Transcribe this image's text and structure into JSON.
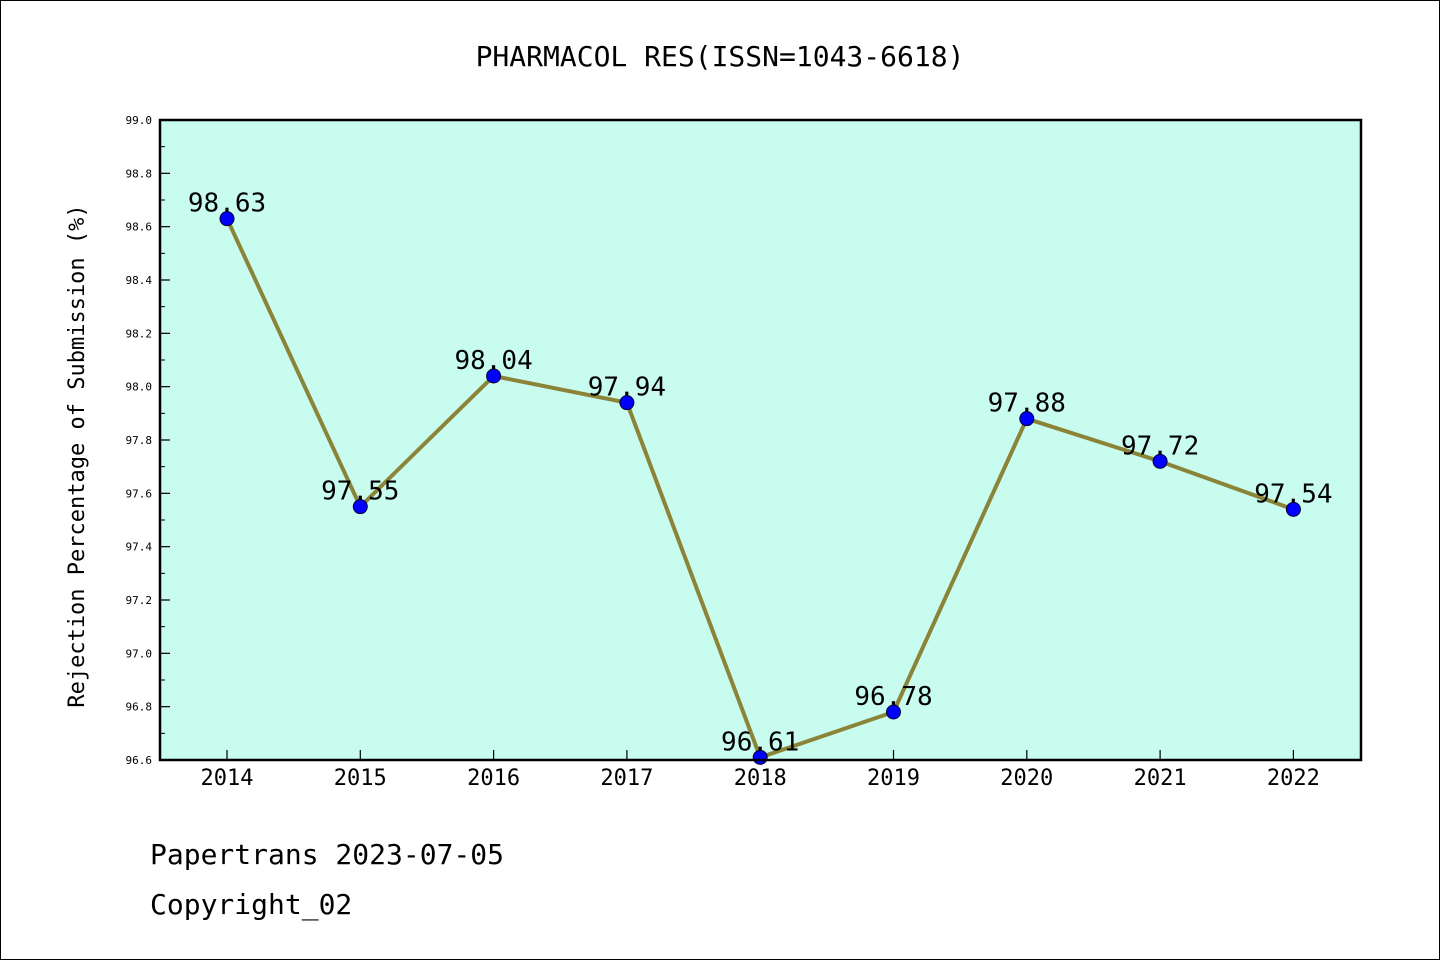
{
  "chart_data": {
    "type": "line",
    "title": "PHARMACOL RES(ISSN=1043-6618)",
    "xlabel": "",
    "ylabel": "Rejection Percentage of Submission (%)",
    "categories": [
      "2014",
      "2015",
      "2016",
      "2017",
      "2018",
      "2019",
      "2020",
      "2021",
      "2022"
    ],
    "series": [
      {
        "values": [
          98.63,
          97.55,
          98.04,
          97.94,
          96.61,
          96.78,
          97.88,
          97.72,
          97.54
        ],
        "data_labels": [
          "98.63",
          "97.55",
          "98.04",
          "97.94",
          "96.61",
          "96.78",
          "97.88",
          "97.72",
          "97.54"
        ]
      }
    ],
    "ylim": [
      96.6,
      99.0
    ],
    "yticks": [
      96.6,
      96.8,
      97.0,
      97.2,
      97.4,
      97.6,
      97.8,
      98.0,
      98.2,
      98.4,
      98.6,
      98.8,
      99.0
    ],
    "ytick_labels": [
      "96.6",
      "96.8",
      "97.0",
      "97.2",
      "97.4",
      "97.6",
      "97.8",
      "98.0",
      "98.2",
      "98.4",
      "98.6",
      "98.8",
      "99.0"
    ],
    "grid": false,
    "legend": "none",
    "colors": {
      "plot_background": "#c8fcee",
      "line": "#8b8438",
      "marker": "#0000ff"
    }
  },
  "footer": {
    "line1": "Papertrans 2023-07-05",
    "line2": "Copyright_02"
  }
}
